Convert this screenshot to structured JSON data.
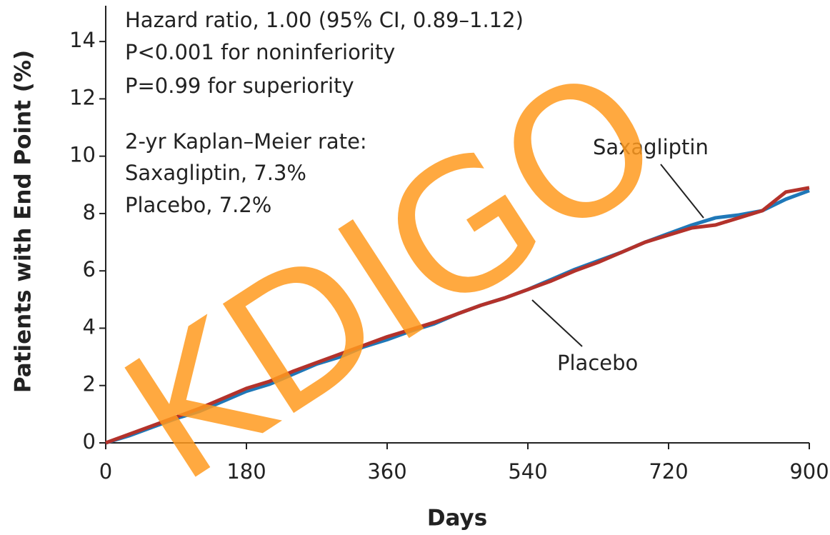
{
  "chart_data": {
    "type": "line",
    "xlabel": "Days",
    "ylabel": "Patients with End Point (%)",
    "annotations": [
      "Hazard ratio, 1.00 (95% CI, 0.89–1.12)",
      "P<0.001 for noninferiority",
      "P=0.99 for superiority",
      "2-yr Kaplan–Meier rate:",
      "Saxagliptin, 7.3%",
      "Placebo, 7.2%"
    ],
    "watermark": "KDIGO",
    "x": [
      0,
      30,
      60,
      90,
      120,
      150,
      180,
      210,
      240,
      270,
      300,
      330,
      360,
      390,
      420,
      450,
      480,
      510,
      540,
      570,
      600,
      630,
      660,
      690,
      720,
      750,
      780,
      810,
      840,
      870,
      900
    ],
    "series": [
      {
        "name": "Saxagliptin",
        "color": "#1f78b8",
        "values": [
          0,
          0.25,
          0.55,
          0.85,
          1.1,
          1.45,
          1.8,
          2.05,
          2.4,
          2.75,
          3.0,
          3.35,
          3.6,
          3.9,
          4.15,
          4.5,
          4.8,
          5.05,
          5.35,
          5.7,
          6.05,
          6.35,
          6.65,
          7.0,
          7.3,
          7.6,
          7.85,
          7.95,
          8.1,
          8.5,
          8.8
        ]
      },
      {
        "name": "Placebo",
        "color": "#b3322b",
        "values": [
          0,
          0.3,
          0.6,
          0.9,
          1.2,
          1.55,
          1.9,
          2.15,
          2.5,
          2.8,
          3.1,
          3.4,
          3.7,
          3.95,
          4.2,
          4.5,
          4.8,
          5.05,
          5.35,
          5.65,
          6.0,
          6.3,
          6.65,
          7.0,
          7.25,
          7.5,
          7.6,
          7.85,
          8.1,
          8.75,
          8.9
        ]
      }
    ],
    "xlim": [
      0,
      900
    ],
    "xticks": [
      0,
      180,
      360,
      540,
      720,
      900
    ],
    "ylim": [
      0,
      15
    ],
    "yticks": [
      0,
      2,
      4,
      6,
      8,
      10,
      12,
      14
    ]
  }
}
